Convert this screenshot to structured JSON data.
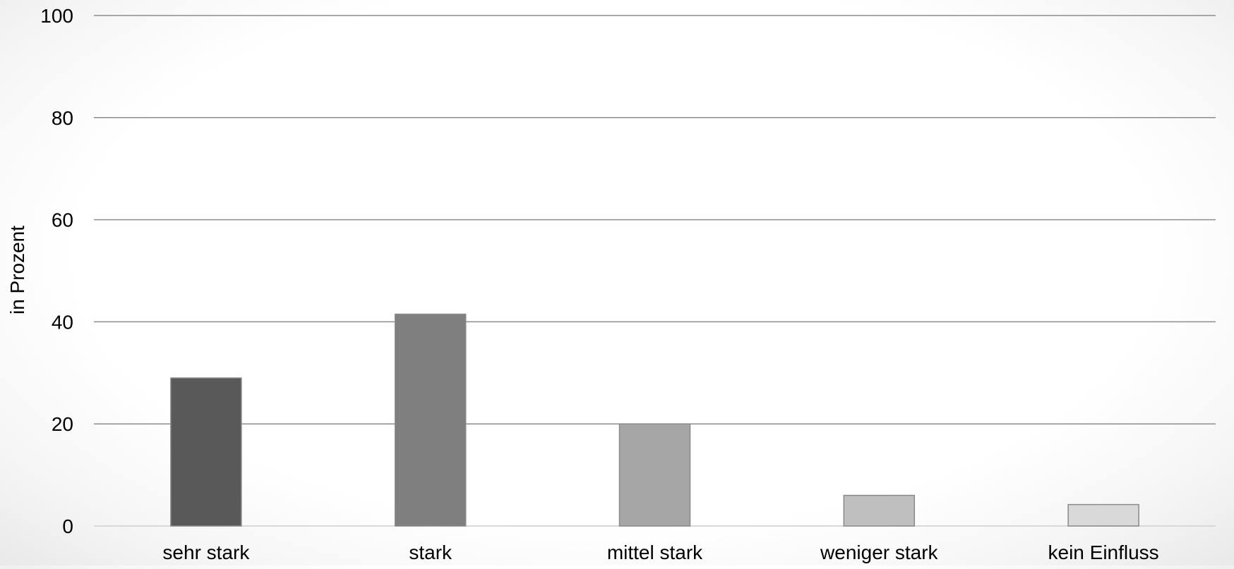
{
  "chart_data": {
    "type": "bar",
    "ylabel": "in Prozent",
    "ylim": [
      0,
      100
    ],
    "yticks": [
      0,
      20,
      40,
      60,
      80,
      100
    ],
    "grid": true,
    "categories": [
      "sehr stark",
      "stark",
      "mittel stark",
      "weniger stark",
      "kein Einfluss"
    ],
    "values": [
      29,
      41.5,
      20,
      6,
      4.2
    ],
    "colors": [
      "#595959",
      "#7f7f7f",
      "#a6a6a6",
      "#bfbfbf",
      "#d9d9d9"
    ]
  }
}
